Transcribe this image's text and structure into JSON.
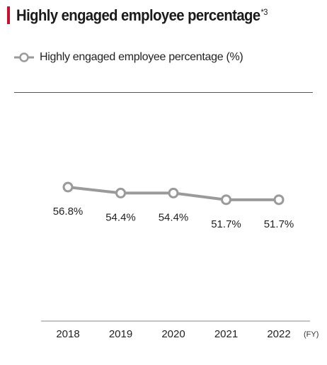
{
  "header": {
    "title": "Highly engaged employee percentage",
    "footnote_mark": "*3",
    "accent_color": "#c8102e"
  },
  "legend": {
    "label": "Highly engaged employee percentage (%)"
  },
  "chart_data": {
    "type": "line",
    "title": "Highly engaged employee percentage",
    "x": [
      "2018",
      "2019",
      "2020",
      "2021",
      "2022"
    ],
    "series": [
      {
        "name": "Highly engaged employee percentage (%)",
        "values": [
          56.8,
          54.4,
          54.4,
          51.7,
          51.7
        ],
        "labels": [
          "56.8%",
          "54.4%",
          "54.4%",
          "51.7%",
          "51.7%"
        ],
        "color": "#9a9a9a"
      }
    ],
    "xlabel": "(FY)",
    "ylabel": "",
    "grid": false,
    "legend_position": "top-left"
  }
}
